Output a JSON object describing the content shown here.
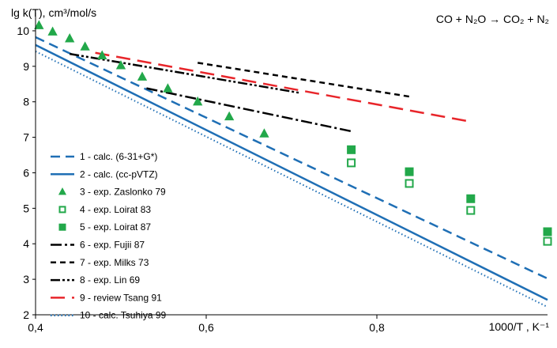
{
  "chart_data": {
    "type": "scatter",
    "title": "CO + N₂O → CO₂ + N₂",
    "ylabel": "lg k(T), cm³/mol/s",
    "xlabel": "1000/T , K⁻¹",
    "xlim": [
      0.4,
      1.0
    ],
    "ylim": [
      2,
      10.4
    ],
    "x_ticks": [
      "0,4",
      "0,6",
      "0,8"
    ],
    "y_ticks": [
      "2",
      "3",
      "4",
      "5",
      "6",
      "7",
      "8",
      "9",
      "10"
    ],
    "legend_position": "left",
    "series": [
      {
        "name": "1 - calc. (6-31+G*)",
        "style": "dashed",
        "color": "#1f6fb5",
        "marker": "none",
        "x": [
          0.4,
          1.0
        ],
        "y": [
          9.82,
          3.02
        ]
      },
      {
        "name": "2 - calc. (cc-pVTZ)",
        "style": "solid",
        "color": "#1f6fb5",
        "marker": "none",
        "x": [
          0.4,
          1.0
        ],
        "y": [
          9.6,
          2.42
        ]
      },
      {
        "name": "3 - exp. Zaslonko 79",
        "style": "none",
        "color": "#22a84a",
        "marker": "triangle",
        "x": [
          0.404,
          0.42,
          0.44,
          0.458,
          0.478,
          0.5,
          0.525,
          0.555,
          0.59,
          0.627,
          0.668
        ],
        "y": [
          10.15,
          9.97,
          9.78,
          9.55,
          9.3,
          9.02,
          8.7,
          8.37,
          8.0,
          7.58,
          7.1
        ]
      },
      {
        "name": "4 - exp. Loirat 83",
        "style": "none",
        "color": "#22a84a",
        "marker": "square-open",
        "x": [
          0.77,
          0.838,
          0.91,
          1.0
        ],
        "y": [
          6.28,
          5.7,
          4.94,
          4.07
        ]
      },
      {
        "name": "5 - exp. Loirat 87",
        "style": "none",
        "color": "#22a84a",
        "marker": "square",
        "x": [
          0.77,
          0.838,
          0.91,
          1.0
        ],
        "y": [
          6.65,
          6.03,
          5.27,
          4.34
        ]
      },
      {
        "name": "6 - exp. Fujii 87",
        "style": "dashdot",
        "color": "#000000",
        "marker": "none",
        "x": [
          0.53,
          0.77
        ],
        "y": [
          8.38,
          7.17
        ]
      },
      {
        "name": "7 - exp. Milks 73",
        "style": "dashed-short",
        "color": "#000000",
        "marker": "none",
        "x": [
          0.59,
          0.84
        ],
        "y": [
          9.1,
          8.14
        ]
      },
      {
        "name": "8 - exp. Lin 69",
        "style": "dashdotdot",
        "color": "#000000",
        "marker": "none",
        "x": [
          0.44,
          0.71
        ],
        "y": [
          9.35,
          8.25
        ]
      },
      {
        "name": "9 - review Tsang 91",
        "style": "longdash",
        "color": "#e8262b",
        "marker": "none",
        "x": [
          0.47,
          0.91
        ],
        "y": [
          9.38,
          7.44
        ]
      },
      {
        "name": "10 - calc. Tsuhiya 99",
        "style": "dotted",
        "color": "#1f6fb5",
        "marker": "none",
        "x": [
          0.4,
          1.0
        ],
        "y": [
          9.42,
          2.22
        ]
      }
    ]
  }
}
